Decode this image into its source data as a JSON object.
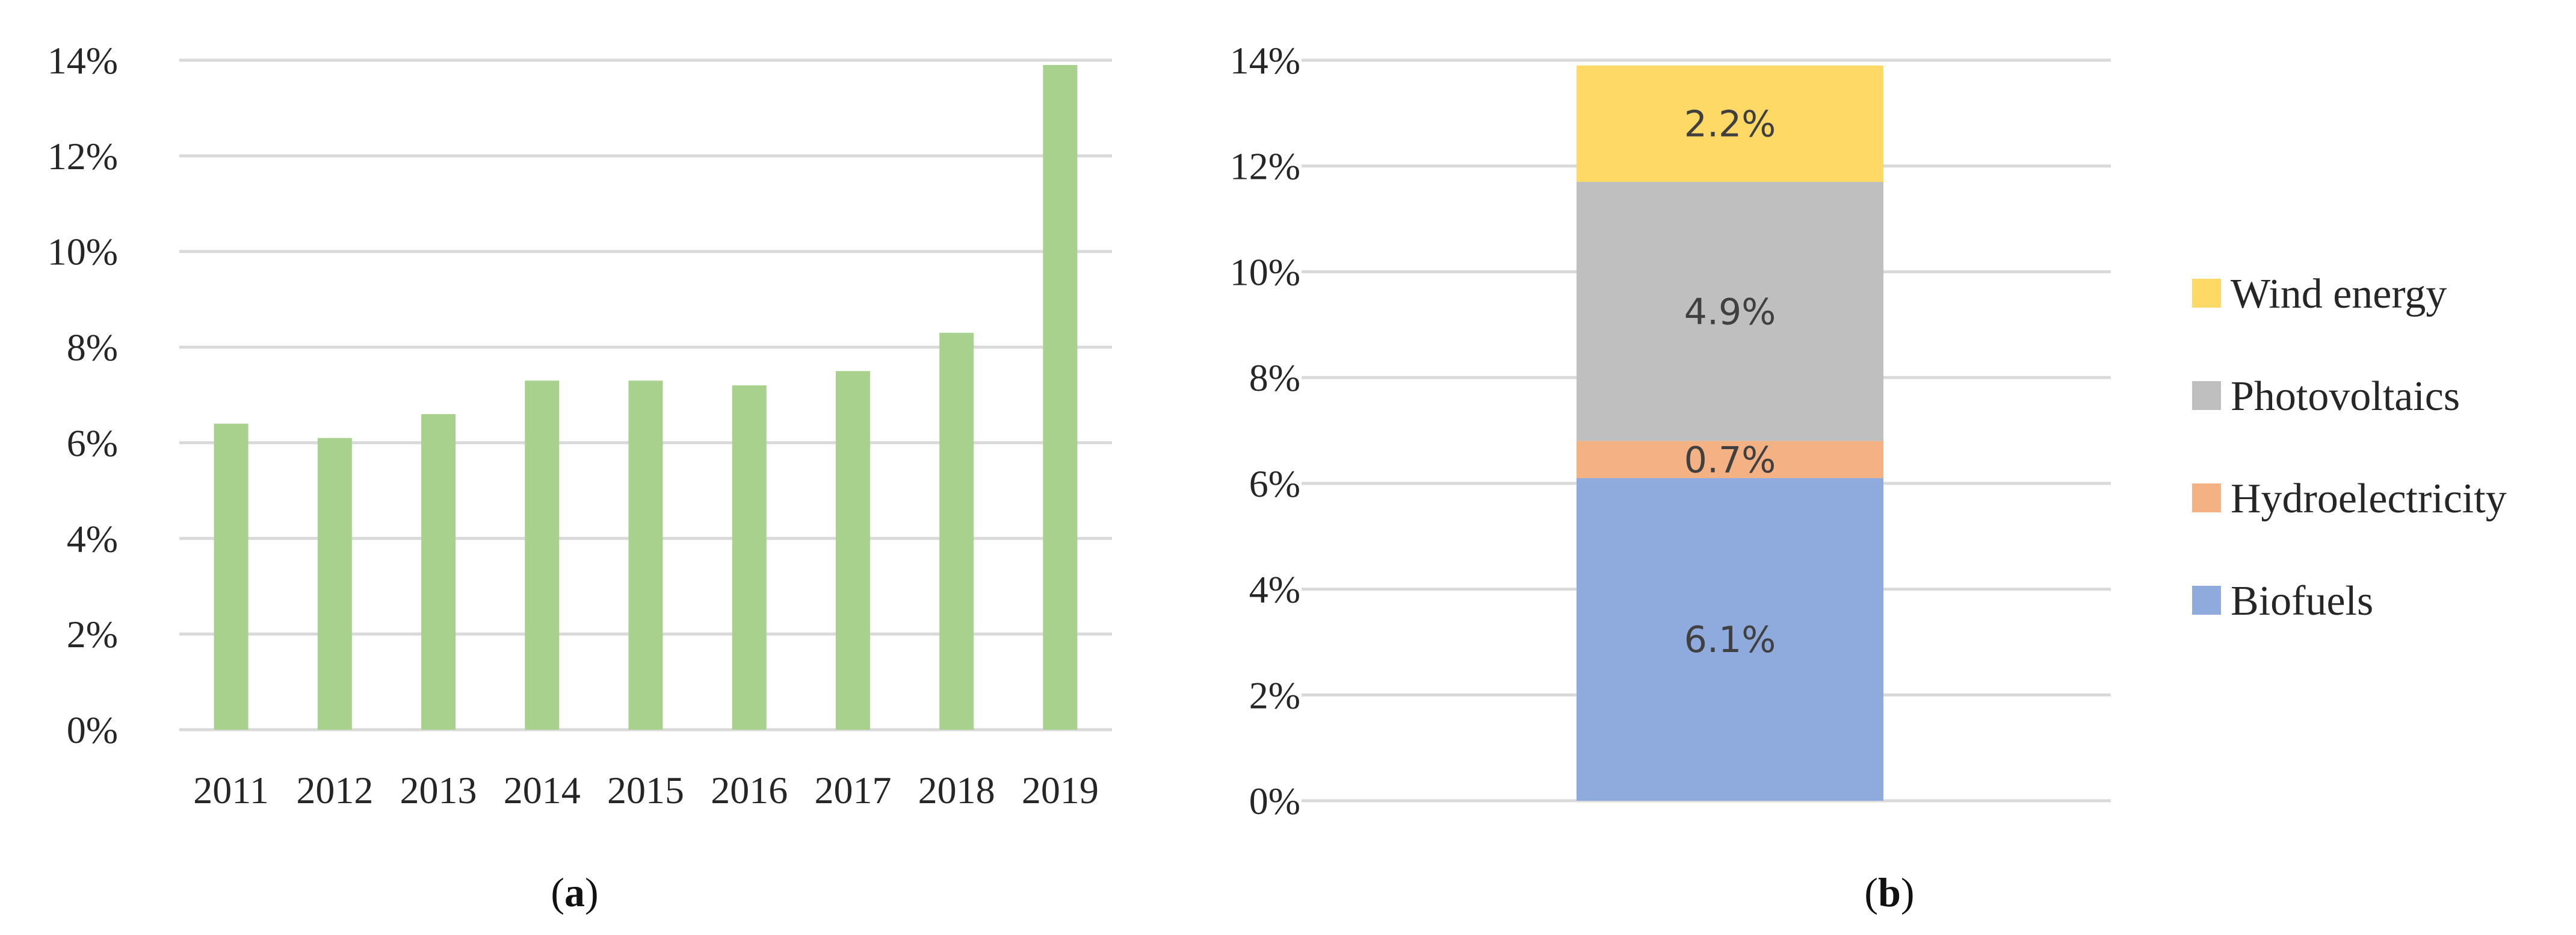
{
  "chart_data": [
    {
      "type": "bar",
      "title": "",
      "caption_letter": "a",
      "categories": [
        "2011",
        "2012",
        "2013",
        "2014",
        "2015",
        "2016",
        "2017",
        "2018",
        "2019"
      ],
      "values": [
        6.4,
        6.1,
        6.6,
        7.3,
        7.3,
        7.2,
        7.5,
        8.3,
        13.9
      ],
      "xlabel": "",
      "ylabel": "",
      "ylim": [
        0,
        14
      ],
      "yticks": [
        "0%",
        "2%",
        "4%",
        "6%",
        "8%",
        "10%",
        "12%",
        "14%"
      ],
      "grid": true,
      "color": "#a9d18e"
    },
    {
      "type": "bar",
      "stacked": true,
      "title": "",
      "caption_letter": "b",
      "ylim": [
        0,
        14
      ],
      "yticks": [
        "0%",
        "2%",
        "4%",
        "6%",
        "8%",
        "10%",
        "12%",
        "14%"
      ],
      "grid": true,
      "legend_position": "right",
      "series": [
        {
          "name": "Biofuels",
          "value": 6.1,
          "label": "6.1%",
          "color": "#8faadc"
        },
        {
          "name": "Hydroelectricity",
          "value": 0.7,
          "label": "0.7%",
          "color": "#f4b183"
        },
        {
          "name": "Photovoltaics",
          "value": 4.9,
          "label": "4.9%",
          "color": "#bfbfbf"
        },
        {
          "name": "Wind energy",
          "value": 2.2,
          "label": "2.2%",
          "color": "#ffd966"
        }
      ]
    }
  ]
}
